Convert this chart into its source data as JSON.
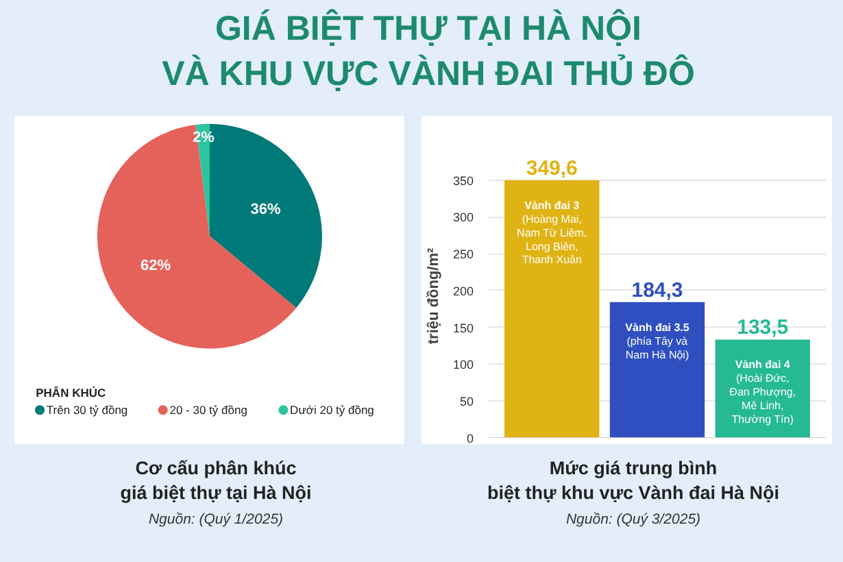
{
  "chart_data": [
    {
      "type": "pie",
      "title": "Cơ cấu phân khúc\ngiá biệt thự tại Hà Nội",
      "annotations": [
        "GIÁ BIỆT THỰ TẠI HÀ NỘI\nVÀ KHU VỰC VÀNH ĐAI THỦ ĐÔ",
        "Nguồn: (Quý 1/2025)"
      ],
      "categories": [
        "Trên 30 tỷ đồng",
        "20 - 30 tỷ đồng",
        "Dưới 20 tỷ đồng"
      ],
      "values": [
        36,
        62,
        2
      ],
      "colors": [
        "#007a78",
        "#e5625a",
        "#2ec4a0"
      ],
      "value_labels": [
        "36%",
        "62%",
        "2%"
      ],
      "legend": "bottom",
      "legend_title": "PHÂN KHÚC"
    },
    {
      "type": "bar",
      "title": "Mức giá trung bình\nbiệt thự khu vực Vành đai Hà Nội",
      "annotations": [
        "Nguồn: (Quý 3/2025)"
      ],
      "ylabel": "triệu đồng/m²",
      "categories": [
        "Vành đai 3\n(Hoàng Mai,\nNam Từ Liêm,\nLong Biên,\nThanh Xuân",
        "Vành đai 3.5\n(phía Tây và\nNam Hà Nội)",
        "Vành đai 4\n(Hoài Đức,\nĐan Phượng,\nMê Linh,\nThường Tín)"
      ],
      "values": [
        349.6,
        184.3,
        133.5
      ],
      "colors": [
        "#e0b314",
        "#2f4fc0",
        "#25b994"
      ],
      "value_labels": [
        "349,6",
        "184,3",
        "133,5"
      ],
      "ylim": [
        0,
        385
      ],
      "yticks": [
        0,
        50,
        100,
        150,
        200,
        250,
        300,
        350
      ],
      "grid": "y",
      "tick_labels": "y"
    }
  ]
}
